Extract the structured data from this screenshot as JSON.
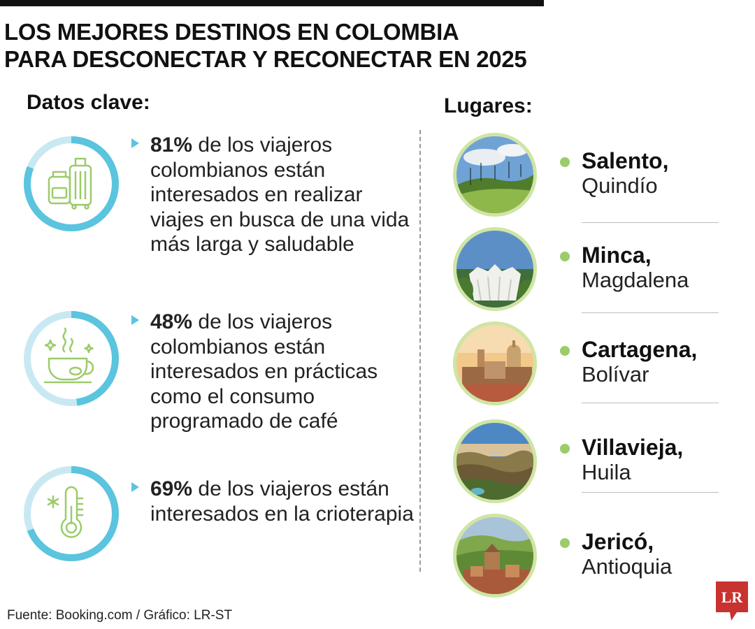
{
  "header": {
    "title_line1": "LOS MEJORES DESTINOS EN COLOMBIA",
    "title_line2": "PARA DESCONECTAR Y RECONECTAR EN 2025"
  },
  "datos": {
    "heading": "Datos clave:",
    "items": [
      {
        "value": "81%",
        "text": " de los viajeros colombianos están interesados en realizar viajes en busca de una vida más larga y saludable",
        "ring_progress": 0.81,
        "icon": "luggage-icon"
      },
      {
        "value": "48%",
        "text": " de los viajeros colombianos están interesados en prácticas como el consumo programado de café",
        "ring_progress": 0.48,
        "icon": "coffee-cup-icon"
      },
      {
        "value": "69%",
        "text": " de los viajeros están interesados en la crioterapia",
        "ring_progress": 0.69,
        "icon": "thermometer-snowflake-icon"
      }
    ]
  },
  "lugares": {
    "heading": "Lugares:",
    "items": [
      {
        "name": "Salento,",
        "dept": "Quindío"
      },
      {
        "name": "Minca,",
        "dept": "Magdalena"
      },
      {
        "name": "Cartagena,",
        "dept": "Bolívar"
      },
      {
        "name": "Villavieja,",
        "dept": "Huila"
      },
      {
        "name": "Jericó,",
        "dept": "Antioquia"
      }
    ]
  },
  "footer": {
    "source": "Fuente: Booking.com / Gráfico: LR-ST",
    "logo_text": "LR"
  },
  "colors": {
    "ring_fill": "#5bc4de",
    "ring_track": "#c9e9f2",
    "icon_green": "#9ccb6a",
    "bullet": "#9ccb6a",
    "logo_red": "#c8322f"
  },
  "chart_data": {
    "type": "table",
    "columns": [
      "value",
      "text"
    ],
    "rows": [
      [
        "81%",
        "de los viajeros colombianos están interesados en realizar viajes en busca de una vida más larga y saludable"
      ],
      [
        "48%",
        "de los viajeros colombianos están interesados en prácticas como el consumo programado de café"
      ],
      [
        "69%",
        "de los viajeros están interesados en la crioterapia"
      ]
    ]
  }
}
